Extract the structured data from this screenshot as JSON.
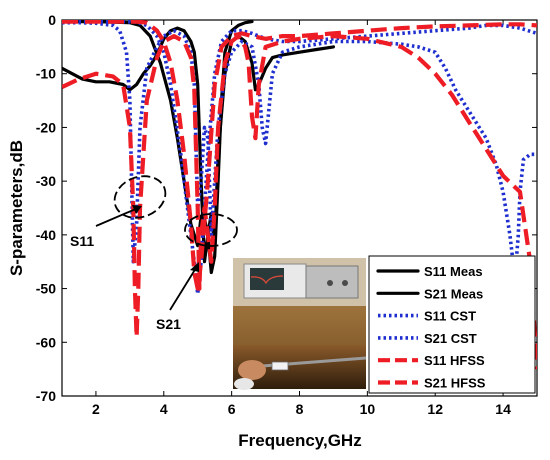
{
  "chart_data": {
    "type": "line",
    "title": "",
    "xlabel": "Frequency,GHz",
    "ylabel": "S-parameters,dB",
    "xlim": [
      1,
      15
    ],
    "ylim": [
      -70,
      0
    ],
    "xticks": [
      2,
      4,
      6,
      8,
      10,
      12,
      14
    ],
    "yticks": [
      0,
      -10,
      -20,
      -30,
      -40,
      -50,
      -60,
      -70
    ],
    "grid": false,
    "legend_position": "bottom-right",
    "series": [
      {
        "name": "S11 Meas",
        "color": "#000000",
        "style": "solid",
        "x": [
          1.0,
          1.3,
          1.6,
          2.0,
          2.4,
          2.8,
          3.0,
          3.2,
          3.4,
          3.6,
          3.8,
          4.0,
          4.2,
          4.4,
          4.6,
          4.8,
          4.9,
          5.0,
          5.1,
          5.2,
          5.3,
          5.4,
          5.5,
          5.6,
          5.8,
          6.0,
          6.2,
          6.4,
          6.6,
          6.7,
          6.8,
          7.0,
          7.2,
          7.5,
          8.0,
          8.5,
          9.0
        ],
        "y": [
          -9,
          -10,
          -11,
          -11.5,
          -11.5,
          -12,
          -13,
          -12,
          -10,
          -8.5,
          -6.5,
          -3.5,
          -2,
          -1.5,
          -2,
          -4,
          -6,
          -12,
          -30,
          -45,
          -40,
          -36,
          -42,
          -25,
          -10,
          -4,
          -3,
          -4,
          -8,
          -13,
          -12,
          -9,
          -7,
          -6.5,
          -6,
          -5.5,
          -5
        ]
      },
      {
        "name": "S21 Meas",
        "color": "#000000",
        "style": "solid",
        "x": [
          1.0,
          1.5,
          2.0,
          2.5,
          3.0,
          3.3,
          3.6,
          3.9,
          4.2,
          4.4,
          4.6,
          4.8,
          5.0,
          5.1,
          5.2,
          5.3,
          5.4,
          5.5,
          5.6,
          5.7,
          5.8,
          6.0,
          6.2,
          6.4,
          6.6
        ],
        "y": [
          -0.3,
          -0.3,
          -0.3,
          -0.4,
          -0.5,
          -1,
          -3,
          -8,
          -15,
          -22,
          -30,
          -38,
          -42,
          -36.5,
          -37,
          -40,
          -47,
          -44,
          -30,
          -15,
          -6,
          -2,
          -1,
          -0.5,
          -0.3
        ]
      },
      {
        "name": "S11 CST",
        "color": "#1f2ecf",
        "style": "dotted",
        "x": [
          1.0,
          1.5,
          2.0,
          2.5,
          2.7,
          2.9,
          3.0,
          3.05,
          3.1,
          3.2,
          3.3,
          3.5,
          3.8,
          4.0,
          4.3,
          4.6,
          4.8,
          4.9,
          5.0,
          5.1,
          5.2,
          5.3,
          5.4,
          5.5,
          5.6,
          5.8,
          6.0,
          6.3,
          6.6,
          6.8,
          6.9,
          7.0,
          7.2,
          7.5,
          8.0,
          9.0,
          10.0,
          11.0,
          11.5,
          12.0,
          12.3,
          12.6,
          13.0,
          13.5,
          13.8,
          14.0,
          14.2,
          14.35,
          14.45,
          14.5,
          14.6,
          14.8,
          15.0
        ],
        "y": [
          -0.5,
          -0.5,
          -0.6,
          -1,
          -2,
          -6,
          -15,
          -30,
          -45,
          -38,
          -20,
          -9,
          -5,
          -3,
          -2,
          -3,
          -6,
          -12,
          -35,
          -30,
          -20,
          -22,
          -40,
          -30,
          -20,
          -10,
          -6,
          -4,
          -5,
          -12,
          -20,
          -23,
          -10,
          -6,
          -5,
          -4,
          -4,
          -4.5,
          -5,
          -6,
          -9,
          -13,
          -17,
          -22,
          -27,
          -32,
          -40,
          -48,
          -40,
          -32,
          -26,
          -25,
          -25
        ]
      },
      {
        "name": "S21 CST",
        "color": "#1f2ecf",
        "style": "dotted",
        "x": [
          1.0,
          2.0,
          2.8,
          3.2,
          3.5,
          3.8,
          4.0,
          4.2,
          4.5,
          4.7,
          4.9,
          5.0,
          5.1,
          5.3,
          5.5,
          5.7,
          6.0,
          6.3,
          6.6,
          7.0,
          7.5,
          8.0,
          9.0,
          10.0,
          11.0,
          12.0,
          13.0,
          13.5,
          14.0,
          14.5,
          15.0
        ],
        "y": [
          -0.3,
          -0.3,
          -0.3,
          -0.4,
          -1,
          -3,
          -6,
          -12,
          -25,
          -35,
          -45,
          -51,
          -45,
          -25,
          -10,
          -4,
          -2,
          -2,
          -2.5,
          -3.5,
          -4,
          -4,
          -3.5,
          -3,
          -2.5,
          -2,
          -1.5,
          -1,
          -1,
          -1.5,
          -2.5
        ]
      },
      {
        "name": "S11 HFSS",
        "color": "#ee1c25",
        "style": "dashed",
        "x": [
          1.0,
          1.5,
          2.0,
          2.5,
          2.8,
          3.0,
          3.1,
          3.15,
          3.2,
          3.25,
          3.3,
          3.5,
          3.8,
          4.0,
          4.3,
          4.6,
          4.8,
          4.9,
          5.0,
          5.05,
          5.1,
          5.2,
          5.3,
          5.4,
          5.5,
          5.6,
          5.8,
          6.0,
          6.2,
          6.4,
          6.5,
          6.6,
          6.7,
          6.8,
          7.0,
          7.5,
          8.0,
          9.0,
          10.0,
          11.0,
          11.5,
          12.0,
          12.5,
          13.0,
          13.5,
          14.0,
          14.5,
          14.8,
          15.0
        ],
        "y": [
          -12.5,
          -11,
          -10,
          -10.5,
          -12,
          -20,
          -35,
          -50,
          -59,
          -50,
          -35,
          -15,
          -7,
          -4,
          -3,
          -4,
          -7,
          -13,
          -35,
          -50,
          -40,
          -35,
          -40,
          -45,
          -35,
          -20,
          -8,
          -4,
          -3,
          -5,
          -8,
          -18,
          -22,
          -12,
          -5,
          -4,
          -3.5,
          -3,
          -3.5,
          -5,
          -7,
          -10,
          -14,
          -19,
          -24,
          -29,
          -32,
          -45,
          -65
        ]
      },
      {
        "name": "S21 HFSS",
        "color": "#ee1c25",
        "style": "dashed",
        "x": [
          1.0,
          2.0,
          2.8,
          3.2,
          3.5,
          3.8,
          4.0,
          4.2,
          4.4,
          4.6,
          4.8,
          4.9,
          5.0,
          5.1,
          5.3,
          5.5,
          5.7,
          6.0,
          6.3,
          6.6,
          7.0,
          7.5,
          8.0,
          9.0,
          10.0,
          11.0,
          12.0,
          13.0,
          14.0,
          14.5,
          15.0
        ],
        "y": [
          -0.3,
          -0.3,
          -0.3,
          -0.3,
          -0.5,
          -2,
          -4,
          -8,
          -15,
          -25,
          -38,
          -47,
          -50,
          -45,
          -30,
          -12,
          -5,
          -3,
          -2.5,
          -3,
          -3.5,
          -3,
          -3,
          -2.5,
          -2,
          -1.5,
          -1.2,
          -1,
          -0.8,
          -0.8,
          -1
        ]
      }
    ],
    "annotations": [
      {
        "text": "S11",
        "target": [
          3.05,
          -36
        ]
      },
      {
        "text": "S21",
        "target": [
          5.0,
          -41
        ]
      }
    ],
    "colors": {
      "black": "#000000",
      "blue": "#1f2ecf",
      "red": "#ee1c25"
    },
    "inset_photo": "photo-inset"
  }
}
